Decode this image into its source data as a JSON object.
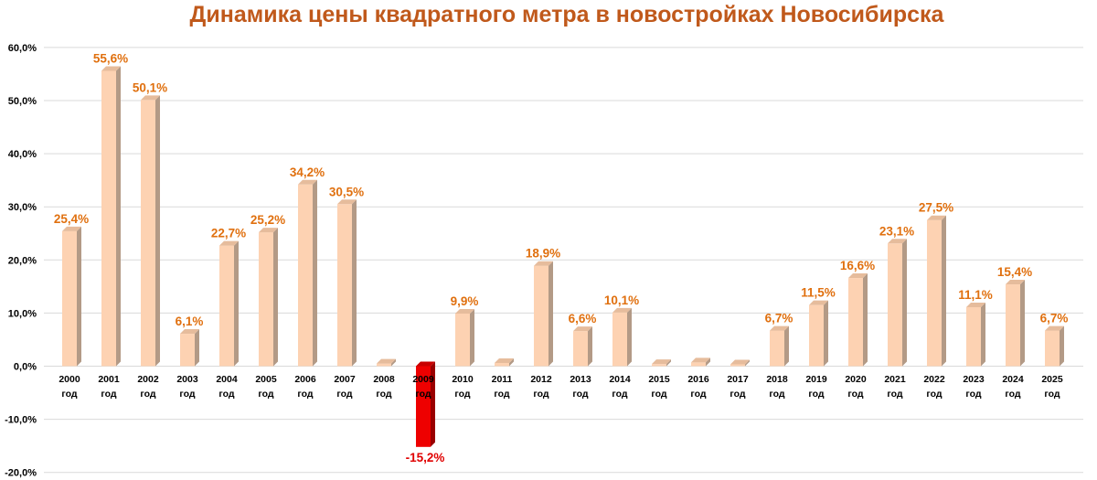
{
  "chart_data": {
    "type": "bar",
    "title": "Динамика цены квадратного метра в новостройках Новосибирска",
    "xlabel": "",
    "ylabel": "",
    "ylim": [
      -20,
      60
    ],
    "y_ticks": [
      "-20,0%",
      "-10,0%",
      "0,0%",
      "10,0%",
      "20,0%",
      "30,0%",
      "40,0%",
      "50,0%",
      "60,0%"
    ],
    "y_tick_values": [
      -20,
      -10,
      0,
      10,
      20,
      30,
      40,
      50,
      60
    ],
    "grid": true,
    "legend": "none",
    "categories": [
      "2000",
      "2001",
      "2002",
      "2003",
      "2004",
      "2005",
      "2006",
      "2007",
      "2008",
      "2009",
      "2010",
      "2011",
      "2012",
      "2013",
      "2014",
      "2015",
      "2016",
      "2017",
      "2018",
      "2019",
      "2020",
      "2021",
      "2022",
      "2023",
      "2024",
      "2025"
    ],
    "category_suffix": "год",
    "values": [
      25.4,
      55.6,
      50.1,
      6.1,
      22.7,
      25.2,
      34.2,
      30.5,
      0.5,
      -15.2,
      9.9,
      0.6,
      18.9,
      6.6,
      10.1,
      0.4,
      0.7,
      0.3,
      6.7,
      11.5,
      16.6,
      23.1,
      27.5,
      11.1,
      15.4,
      6.7
    ],
    "data_labels": [
      "25,4%",
      "55,6%",
      "50,1%",
      "6,1%",
      "22,7%",
      "25,2%",
      "34,2%",
      "30,5%",
      "",
      "-15,2%",
      "9,9%",
      "",
      "18,9%",
      "6,6%",
      "10,1%",
      "",
      "",
      "",
      "6,7%",
      "11,5%",
      "16,6%",
      "23,1%",
      "27,5%",
      "11,1%",
      "15,4%",
      "6,7%"
    ],
    "colors": {
      "bar_front": "#fdd2b2",
      "bar_side": "#b39a86",
      "bar_top": "#e6bc9c",
      "neg_front": "#ee0000",
      "neg_side": "#9a0000",
      "neg_top": "#c80000",
      "label_positive": "#e0700f",
      "label_negative": "#e00000",
      "title": "#c0591b"
    }
  }
}
